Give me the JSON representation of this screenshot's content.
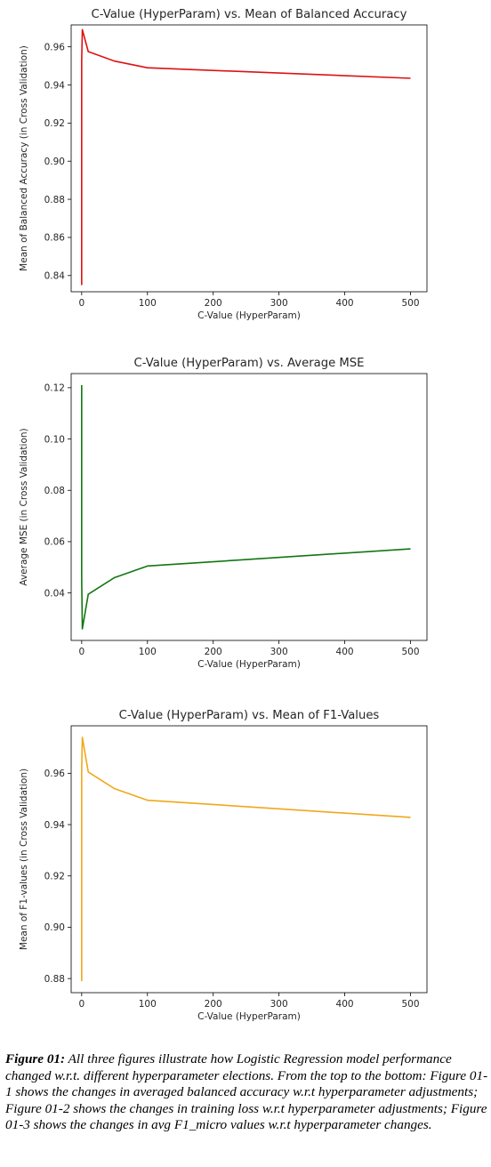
{
  "chart_data": [
    {
      "type": "line",
      "title": "C-Value (HyperParam) vs. Mean of Balanced Accuracy",
      "xlabel": "C-Value (HyperParam)",
      "ylabel": "Mean of Balanced Accuracy (in Cross Validation)",
      "xlim": [
        -16,
        525
      ],
      "ylim": [
        0.8315,
        0.9715
      ],
      "xticks": [
        0,
        100,
        200,
        300,
        400,
        500
      ],
      "yticks": [
        0.84,
        0.86,
        0.88,
        0.9,
        0.92,
        0.94,
        0.96
      ],
      "ytick_decimals": 2,
      "color": "#dd1111",
      "x": [
        0.001,
        0.01,
        1,
        10,
        50,
        100,
        500
      ],
      "y": [
        0.835,
        0.953,
        0.969,
        0.9575,
        0.9525,
        0.949,
        0.9435
      ]
    },
    {
      "type": "line",
      "title": "C-Value (HyperParam) vs. Average MSE",
      "xlabel": "C-Value (HyperParam)",
      "ylabel": "Average MSE (in Cross Validation)",
      "xlim": [
        -16,
        525
      ],
      "ylim": [
        0.0215,
        0.1255
      ],
      "xticks": [
        0,
        100,
        200,
        300,
        400,
        500
      ],
      "yticks": [
        0.04,
        0.06,
        0.08,
        0.1,
        0.12
      ],
      "ytick_decimals": 2,
      "color": "#117711",
      "x": [
        0.001,
        0.01,
        1,
        10,
        50,
        100,
        500
      ],
      "y": [
        0.121,
        0.045,
        0.026,
        0.0395,
        0.046,
        0.0505,
        0.0572
      ]
    },
    {
      "type": "line",
      "title": "C-Value (HyperParam) vs. Mean of F1-Values",
      "xlabel": "C-Value (HyperParam)",
      "ylabel": "Mean of  F1-values (in Cross Validation)",
      "xlim": [
        -16,
        525
      ],
      "ylim": [
        0.8745,
        0.9785
      ],
      "xticks": [
        0,
        100,
        200,
        300,
        400,
        500
      ],
      "yticks": [
        0.88,
        0.9,
        0.92,
        0.94,
        0.96
      ],
      "ytick_decimals": 2,
      "color": "#f0a81a",
      "x": [
        0.001,
        0.01,
        1,
        10,
        50,
        100,
        500
      ],
      "y": [
        0.879,
        0.962,
        0.974,
        0.9605,
        0.954,
        0.9495,
        0.9428
      ]
    }
  ],
  "caption": {
    "lead": "Figure 01:",
    "body": " All three figures illustrate how Logistic Regression model performance changed w.r.t. different hyperparameter elections. From the top to the bottom: Figure 01-1 shows the changes in averaged balanced accuracy w.r.t hyperparameter  adjustments; Figure 01-2 shows the changes in training loss w.r.t hyperparameter adjustments; Figure 01-3 shows the changes in avg F1_micro values w.r.t hyperparameter changes."
  }
}
